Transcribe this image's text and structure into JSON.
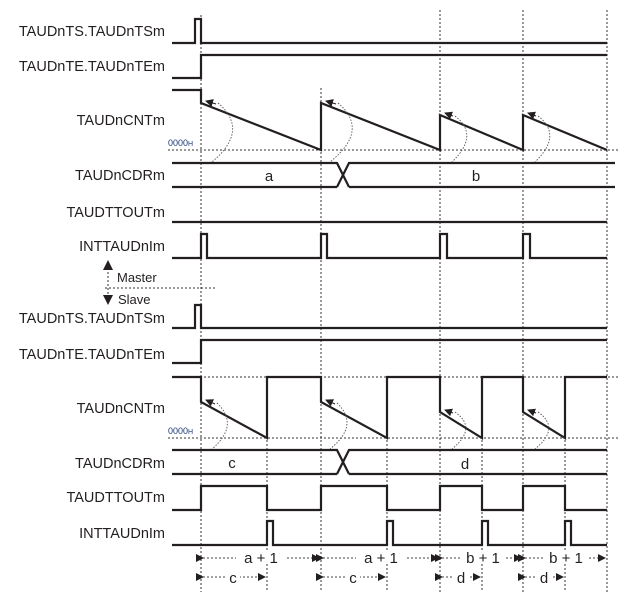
{
  "master": {
    "signals": [
      "TAUDnTS.TAUDnTSm",
      "TAUDnTE.TAUDnTEm",
      "TAUDnCNTm",
      "TAUDnCDRm",
      "TAUDTTOUTm",
      "INTTAUDnIm"
    ],
    "zero_label": "0000H",
    "cdr_values": [
      "a",
      "b"
    ]
  },
  "divider": {
    "master": "Master",
    "slave": "Slave"
  },
  "slave": {
    "signals": [
      "TAUDnTS.TAUDnTSm",
      "TAUDnTE.TAUDnTEm",
      "TAUDnCNTm",
      "TAUDnCDRm",
      "TAUDTTOUTm",
      "INTTAUDnIm"
    ],
    "zero_label": "0000H",
    "cdr_values": [
      "c",
      "d"
    ]
  },
  "intervals": {
    "periods": [
      "a + 1",
      "a + 1",
      "b + 1",
      "b + 1"
    ],
    "duties": [
      "c",
      "c",
      "d",
      "d"
    ]
  }
}
